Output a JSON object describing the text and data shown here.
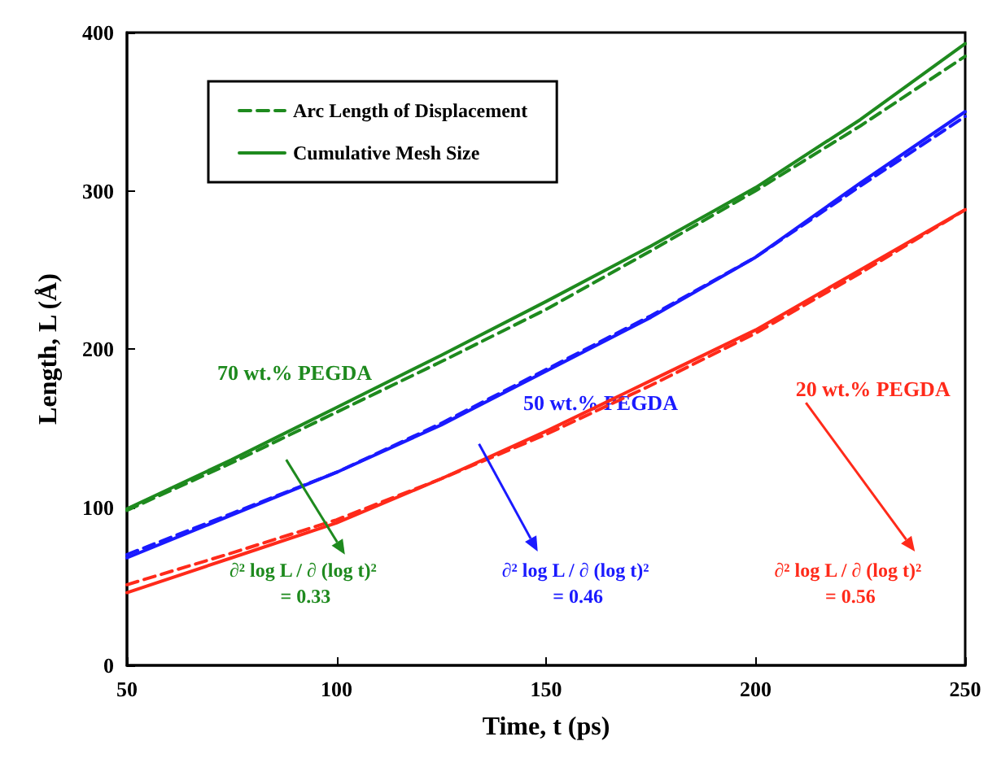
{
  "chart_data": {
    "type": "line",
    "xlabel": "Time, t (ps)",
    "ylabel": "Length, L (Å)",
    "x": [
      50,
      75,
      100,
      125,
      150,
      175,
      200,
      225,
      250
    ],
    "xlim": [
      50,
      250
    ],
    "xticks": [
      50,
      100,
      150,
      200,
      250
    ],
    "ylim": [
      0,
      400
    ],
    "yticks": [
      0,
      100,
      200,
      300,
      400
    ],
    "grid": false,
    "legend": "top left",
    "marker": "none",
    "series": [
      {
        "name": "Arc Length of Displacement",
        "color": "#1e8a1e",
        "line_style": "dashed",
        "values": [
          98,
          128,
          160,
          192,
          225,
          262,
          300,
          341,
          385
        ]
      },
      {
        "name": "Cumulative Mesh Size",
        "color": "#1e8a1e",
        "line_style": "solid",
        "values": [
          99,
          130,
          163,
          196,
          230,
          265,
          302,
          345,
          393
        ]
      },
      {
        "color": "#1a1aff",
        "line_style": "dashed",
        "values": [
          70,
          96,
          122,
          153,
          187,
          221,
          258,
          303,
          347
        ]
      },
      {
        "color": "#1a1aff",
        "line_style": "solid",
        "values": [
          68,
          95,
          122,
          152,
          186,
          220,
          258,
          305,
          350
        ]
      },
      {
        "color": "#ff2a1a",
        "line_style": "dashed",
        "values": [
          51,
          71,
          92,
          118,
          146,
          177,
          210,
          248,
          288
        ]
      },
      {
        "color": "#ff2a1a",
        "line_style": "solid",
        "values": [
          46,
          68,
          90,
          118,
          148,
          180,
          212,
          250,
          288
        ]
      }
    ],
    "annotations": [
      "70 wt.% PEGDA",
      "50 wt.% PEGDA",
      "20 wt.% PEGDA",
      "∂² log L / ∂ (log t)² = 0.33",
      "∂² log L / ∂ (log t)² = 0.46",
      "∂² log L / ∂ (log t)² = 0.56"
    ]
  }
}
